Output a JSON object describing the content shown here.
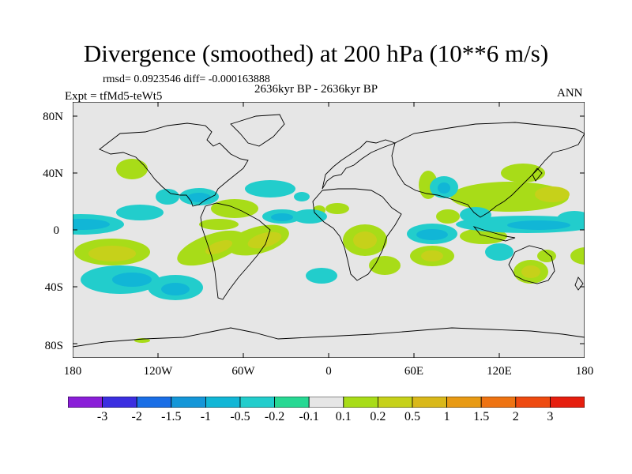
{
  "title": "Divergence (smoothed) at 200 hPa (10**6 m/s)",
  "stats_line": "rmsd= 0.0923546 diff= -0.000163888",
  "period": "2636kyr BP - 2636kyr BP",
  "experiment": "Expt = tfMd5-teWt5",
  "season": "ANN",
  "lat_labels": [
    "80N",
    "40N",
    "0",
    "40S",
    "80S"
  ],
  "lon_labels": [
    "180",
    "120W",
    "60W",
    "0",
    "60E",
    "120E",
    "180"
  ],
  "colorbar": {
    "colors": [
      "#8a1ed8",
      "#3b2ee0",
      "#1a6ee6",
      "#1496d8",
      "#11b6d6",
      "#22cdcc",
      "#27d893",
      "#e6e6e6",
      "#a8dc18",
      "#c6d11a",
      "#d9b81a",
      "#e89a14",
      "#ee7312",
      "#ee4a10",
      "#e61e0e"
    ],
    "labels": [
      "-3",
      "-2",
      "-1.5",
      "-1",
      "-0.5",
      "-0.2",
      "-0.1",
      "0.1",
      "0.2",
      "0.5",
      "1",
      "1.5",
      "2",
      "3"
    ]
  },
  "map_colors": {
    "background": "#e6e6e6",
    "neg_weak": "#27d893",
    "neg_mid": "#22cdcc",
    "neg_strong": "#11b6d6",
    "pos_weak": "#a8dc18",
    "pos_mid": "#c6d11a",
    "pos_strong": "#d9b81a"
  }
}
